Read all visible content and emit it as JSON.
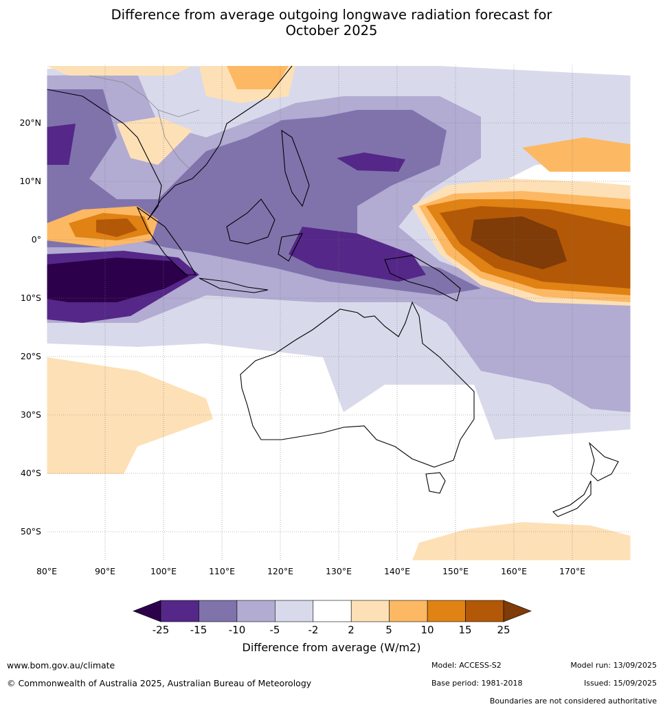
{
  "title_line1": "Difference from average outgoing longwave radiation forecast for",
  "title_line2": "October 2025",
  "lat_labels": [
    "20°N",
    "10°N",
    "0°",
    "10°S",
    "20°S",
    "30°S",
    "40°S",
    "50°S"
  ],
  "lon_labels": [
    "80°E",
    "90°E",
    "100°E",
    "110°E",
    "120°E",
    "130°E",
    "140°E",
    "150°E",
    "160°E",
    "170°E"
  ],
  "colorbar": {
    "ticks": [
      "-25",
      "-15",
      "-10",
      "-5",
      "-2",
      "2",
      "5",
      "10",
      "15",
      "25"
    ],
    "title": "Difference from average (W/m2)",
    "colors": [
      "#2d004b",
      "#542788",
      "#8073ac",
      "#b2abd2",
      "#d8daeb",
      "#ffffff",
      "#fee0b6",
      "#fdb863",
      "#e08214",
      "#b35806",
      "#7f3b08"
    ]
  },
  "footer": {
    "url": "www.bom.gov.au/climate",
    "copyright": "© Commonwealth of Australia 2025, Australian Bureau of Meteorology",
    "model": "Model: ACCESS-S2",
    "base_period": "Base period: 1981-2018",
    "model_run": "Model run: 13/09/2025",
    "issued": "Issued: 15/09/2025",
    "disclaimer": "Boundaries are not considered authoritative"
  }
}
